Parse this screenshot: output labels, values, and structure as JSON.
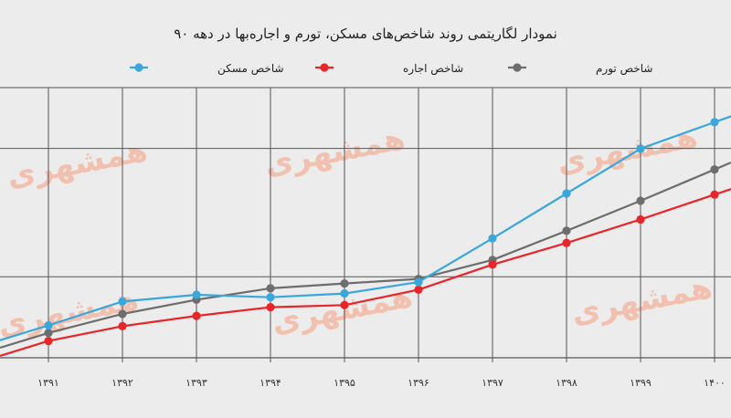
{
  "chart_data": {
    "type": "line",
    "title": "نمودار لگاریتمی روند شاخص‌های مسکن، تورم و اجاره‌بها در دهه ۹۰",
    "x": [
      "۱۳۹۱",
      "۱۳۹۲",
      "۱۳۹۳",
      "۱۳۹۴",
      "۱۳۹۵",
      "۱۳۹۶",
      "۱۳۹۷",
      "۱۳۹۸",
      "۱۳۹۹",
      "۱۴۰۰"
    ],
    "series": [
      {
        "name": "شاخص مسکن",
        "color": "#3aa7dc",
        "values": [
          1.2,
          2.08,
          2.33,
          2.24,
          2.38,
          2.8,
          4.42,
          6.08,
          7.74,
          8.72
        ]
      },
      {
        "name": "شاخص اجاره",
        "color": "#e8262a",
        "values": [
          0.62,
          1.17,
          1.55,
          1.87,
          1.95,
          2.52,
          3.45,
          4.25,
          5.12,
          6.04
        ]
      },
      {
        "name": "شاخص تورم",
        "color": "#6d6d6d",
        "values": [
          0.92,
          1.62,
          2.15,
          2.57,
          2.75,
          2.92,
          3.62,
          4.7,
          5.81,
          6.97
        ]
      }
    ],
    "ylim": [
      0,
      10
    ],
    "grid": true,
    "legend": "top",
    "xlabel": "",
    "ylabel": ""
  },
  "watermark": "همشهری",
  "colors": {
    "background": "#ececec",
    "grid": "#555555",
    "watermark": "#f4b9a4"
  }
}
